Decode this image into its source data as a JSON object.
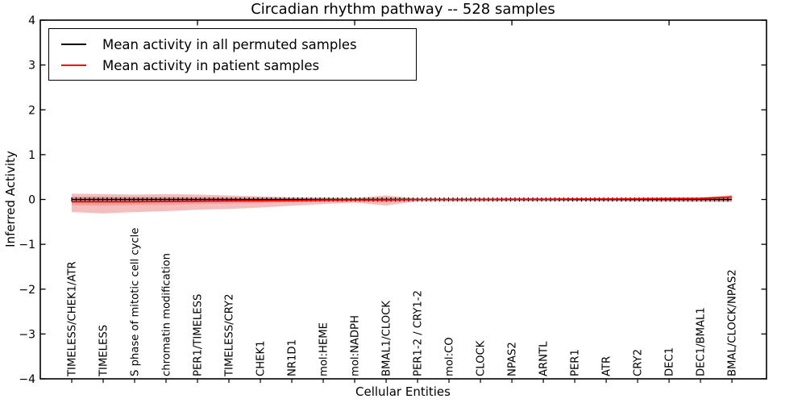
{
  "legend": {
    "position": "upper left",
    "entries": [
      {
        "label": "Mean activity in all permuted samples",
        "color": "#000000"
      },
      {
        "label": "Mean activity in patient samples",
        "color": "#ff0000"
      }
    ]
  },
  "chart_data": {
    "type": "line",
    "title": "Circadian rhythm pathway -- 528 samples",
    "xlabel": "Cellular Entities",
    "ylabel": "Inferred Activity",
    "xlim": [
      0,
      23.1
    ],
    "ylim": [
      -4,
      4
    ],
    "yticks": [
      4,
      3,
      2,
      1,
      0,
      -1,
      -2,
      -3,
      -4
    ],
    "top_ticks_x": [
      5,
      10,
      15,
      20
    ],
    "grid": false,
    "categories": [
      "TIMELESS/CHEK1/ATR",
      "TIMELESS",
      "S phase of mitotic cell cycle",
      "chromatin modification",
      "PER1/TIMELESS",
      "TIMELESS/CRY2",
      "CHEK1",
      "NR1D1",
      "mol:HEME",
      "mol:NADPH",
      "BMAL1/CLOCK",
      "PER1-2 / CRY1-2",
      "mol:CO",
      "CLOCK",
      "NPAS2",
      "ARNTL",
      "PER1",
      "ATR",
      "CRY2",
      "DEC1",
      "DEC1/BMAL1",
      "BMAL/CLOCK/NPAS2"
    ],
    "x": [
      1,
      2,
      3,
      4,
      5,
      6,
      7,
      8,
      9,
      10,
      11,
      12,
      13,
      14,
      15,
      16,
      17,
      18,
      19,
      20,
      21,
      22
    ],
    "series": [
      {
        "name": "Mean activity in all permuted samples",
        "color": "#000000",
        "marker": "+",
        "values": [
          0,
          0,
          0,
          0,
          0,
          0,
          0,
          0,
          0,
          0,
          0,
          0,
          0,
          0,
          0,
          0,
          0,
          0,
          0,
          0,
          0,
          0
        ],
        "std": [
          0.06,
          0.06,
          0.055,
          0.05,
          0.05,
          0.045,
          0.045,
          0.04,
          0.04,
          0.035,
          0.035,
          0.03,
          0.035,
          0.035,
          0.035,
          0.035,
          0.035,
          0.04,
          0.04,
          0.045,
          0.05,
          0.055
        ]
      },
      {
        "name": "Mean activity in patient samples",
        "color": "#ff0000",
        "values": [
          -0.05,
          -0.05,
          -0.05,
          -0.045,
          -0.04,
          -0.035,
          -0.03,
          -0.025,
          -0.015,
          -0.01,
          -0.01,
          0,
          0,
          0,
          0.005,
          0.005,
          0.01,
          0.01,
          0.015,
          0.02,
          0.025,
          0.055
        ],
        "std_upper": [
          0.13,
          0.12,
          0.11,
          0.12,
          0.11,
          0.09,
          0.07,
          0.05,
          0.04,
          0.03,
          0.09,
          0.02,
          0.02,
          0.02,
          0.02,
          0.02,
          0.02,
          0.025,
          0.03,
          0.03,
          0.04,
          0.1
        ],
        "std_lower": [
          -0.28,
          -0.31,
          -0.28,
          -0.26,
          -0.23,
          -0.21,
          -0.18,
          -0.14,
          -0.1,
          -0.07,
          -0.135,
          -0.04,
          -0.035,
          -0.035,
          -0.03,
          -0.03,
          -0.03,
          -0.035,
          -0.04,
          -0.045,
          -0.05,
          -0.05
        ],
        "stderr_upper": [
          0.06,
          0.055,
          0.05,
          0.055,
          0.05,
          0.04,
          0.03,
          0.025,
          0.02,
          0.015,
          0.045,
          0.01,
          0.01,
          0.01,
          0.01,
          0.01,
          0.01,
          0.012,
          0.015,
          0.015,
          0.02,
          0.05
        ],
        "stderr_lower": [
          -0.13,
          -0.14,
          -0.125,
          -0.12,
          -0.105,
          -0.095,
          -0.08,
          -0.065,
          -0.045,
          -0.03,
          -0.065,
          -0.018,
          -0.016,
          -0.016,
          -0.014,
          -0.014,
          -0.014,
          -0.016,
          -0.018,
          -0.02,
          -0.023,
          -0.023
        ]
      }
    ],
    "colors": {
      "permuted_band_fill": "rgba(100,100,100,0.22)",
      "patient_band_fill": "rgba(220,40,40,0.30)",
      "patient_inner_band_fill": "rgba(220,40,40,0.18)",
      "axis": "#000000"
    }
  }
}
